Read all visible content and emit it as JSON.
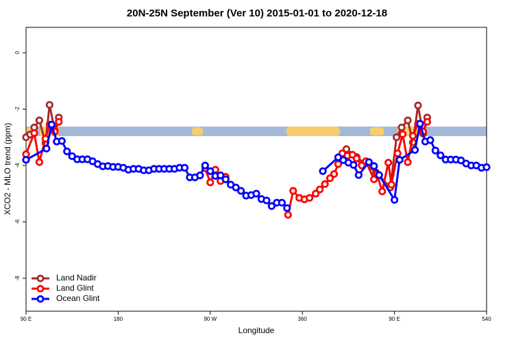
{
  "chart_data": {
    "type": "line",
    "title": "20N-25N September (Ver 10)   2015-01-01 to 2020-12-18",
    "x_label": "Longitude",
    "y_label": "XCO2 - MLO trend (ppm)",
    "xlim": [
      90,
      540
    ],
    "ylim": [
      -9.17,
      0.9
    ],
    "xticks": [
      {
        "value": 90,
        "label": "90 E"
      },
      180,
      {
        "value": 270,
        "label": "90 W"
      },
      360,
      {
        "value": 450,
        "label": "90 E"
      },
      540
    ],
    "yticks": [
      0,
      -2,
      -4,
      -6,
      -8
    ],
    "legend": "bottom-left",
    "series": [
      {
        "name": "Land Nadir",
        "color": "#a52a2a",
        "x": [
          90,
          94,
          98,
          103,
          109,
          113,
          118,
          122,
          383,
          403,
          413,
          432,
          446,
          452,
          457,
          463,
          468,
          473,
          478,
          482
        ],
        "values": [
          -3.0,
          -2.9,
          -2.65,
          -2.4,
          -3.2,
          -1.85,
          -2.75,
          -2.3,
          null,
          -3.42,
          -3.7,
          -4.25,
          -4.78,
          -3.0,
          -2.65,
          -2.4,
          -3.18,
          -1.87,
          -2.87,
          -2.3
        ]
      },
      {
        "name": "Land Glint",
        "color": "#ff0000",
        "x": [
          90,
          98,
          103,
          109,
          113,
          118,
          122,
          260,
          265,
          270,
          275,
          280,
          285,
          300,
          346,
          351,
          357,
          362,
          367,
          373,
          377,
          382,
          387,
          391,
          395,
          399,
          404,
          409,
          413,
          418,
          422,
          430,
          433,
          438,
          444,
          447,
          453,
          458,
          463,
          468,
          473,
          478,
          482
        ],
        "values": [
          -3.6,
          -2.85,
          -3.88,
          -3.05,
          -2.55,
          -2.8,
          -2.45,
          null,
          -4.1,
          -4.6,
          -4.15,
          -4.55,
          -4.4,
          null,
          -5.75,
          -4.9,
          -5.15,
          -5.2,
          -5.15,
          -5.0,
          -4.85,
          -4.66,
          -4.45,
          -4.3,
          -3.95,
          -3.57,
          -3.65,
          -3.62,
          -3.75,
          -4.0,
          -3.85,
          -4.49,
          -4.3,
          -4.92,
          -3.9,
          -4.68,
          -3.57,
          -2.89,
          -3.88,
          -2.95,
          -2.52,
          -2.8,
          -2.45
        ]
      },
      {
        "name": "Ocean Glint",
        "color": "#0000ff",
        "x": [
          90,
          110,
          115,
          120,
          125,
          130,
          135,
          140,
          145,
          150,
          155,
          160,
          165,
          170,
          175,
          180,
          185,
          190,
          195,
          200,
          205,
          210,
          215,
          220,
          225,
          230,
          235,
          240,
          245,
          250,
          255,
          260,
          265,
          270,
          275,
          280,
          285,
          290,
          295,
          300,
          305,
          310,
          315,
          320,
          325,
          330,
          335,
          340,
          345,
          350,
          380,
          395,
          400,
          405,
          410,
          415,
          425,
          430,
          435,
          450,
          455,
          470,
          475,
          480,
          485,
          490,
          495,
          500,
          505,
          510,
          515,
          520,
          525,
          530,
          535,
          540
        ],
        "values": [
          -3.8,
          -3.4,
          -2.55,
          -3.15,
          -3.13,
          -3.5,
          -3.67,
          -3.78,
          -3.78,
          -3.78,
          -3.85,
          -3.95,
          -4.03,
          -4.02,
          -4.05,
          -4.05,
          -4.08,
          -4.15,
          -4.12,
          -4.12,
          -4.17,
          -4.17,
          -4.12,
          -4.12,
          -4.12,
          -4.12,
          -4.12,
          -4.08,
          -4.08,
          -4.42,
          -4.42,
          -4.35,
          -4.0,
          -4.2,
          -4.37,
          -4.35,
          -4.49,
          -4.68,
          -4.78,
          -4.9,
          -5.07,
          -5.05,
          -5.0,
          -5.19,
          -5.24,
          -5.44,
          -5.32,
          -5.32,
          -5.51,
          null,
          -4.2,
          -3.71,
          -3.81,
          -3.9,
          -3.98,
          -4.34,
          -3.88,
          -4.02,
          -4.34,
          -5.22,
          -3.8,
          -3.45,
          -2.52,
          -3.15,
          -3.1,
          -3.47,
          -3.64,
          -3.79,
          -3.79,
          -3.79,
          -3.82,
          -3.93,
          -4.0,
          -4.0,
          -4.08,
          -4.06
        ]
      }
    ]
  }
}
